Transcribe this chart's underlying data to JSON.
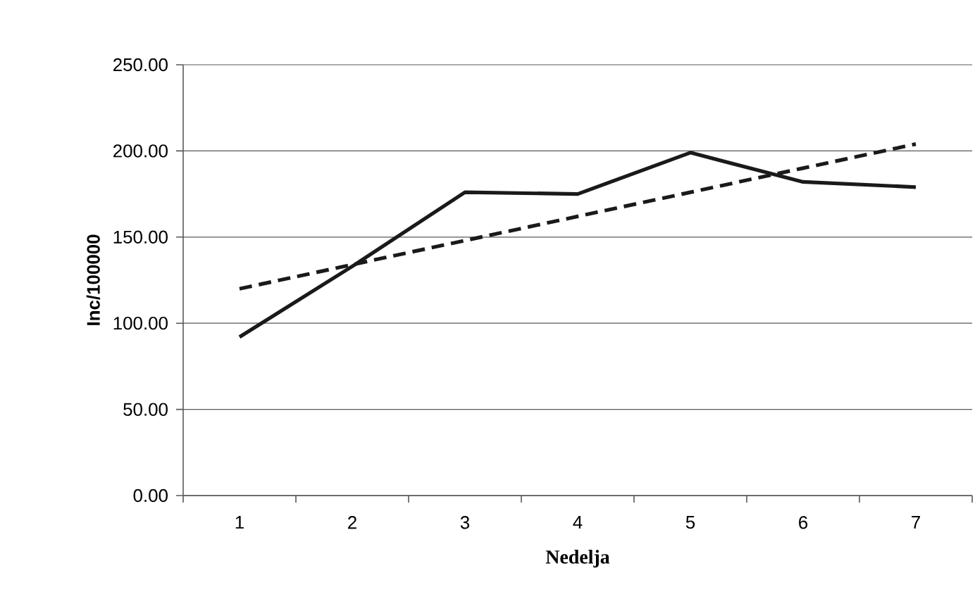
{
  "chart_data": {
    "type": "line",
    "xlabel": "Nedelja",
    "ylabel": "Inc/100000",
    "categories": [
      "1",
      "2",
      "3",
      "4",
      "5",
      "6",
      "7"
    ],
    "series": [
      {
        "color": "#1a1a1a",
        "line_style": "solid",
        "values": [
          92,
          133,
          176,
          175,
          199,
          182,
          179
        ]
      },
      {
        "color": "#1a1a1a",
        "line_style": "dashed",
        "values": [
          120,
          134,
          148,
          162,
          176,
          190,
          204
        ]
      }
    ],
    "ylim": [
      0,
      250
    ],
    "yticks": [
      {
        "value": 0,
        "label": "0.00"
      },
      {
        "value": 50,
        "label": "50.00"
      },
      {
        "value": 100,
        "label": "100.00"
      },
      {
        "value": 150,
        "label": "150.00"
      },
      {
        "value": 200,
        "label": "200.00"
      },
      {
        "value": 250,
        "label": "250.00"
      }
    ],
    "grid": "y",
    "marker": "none"
  }
}
